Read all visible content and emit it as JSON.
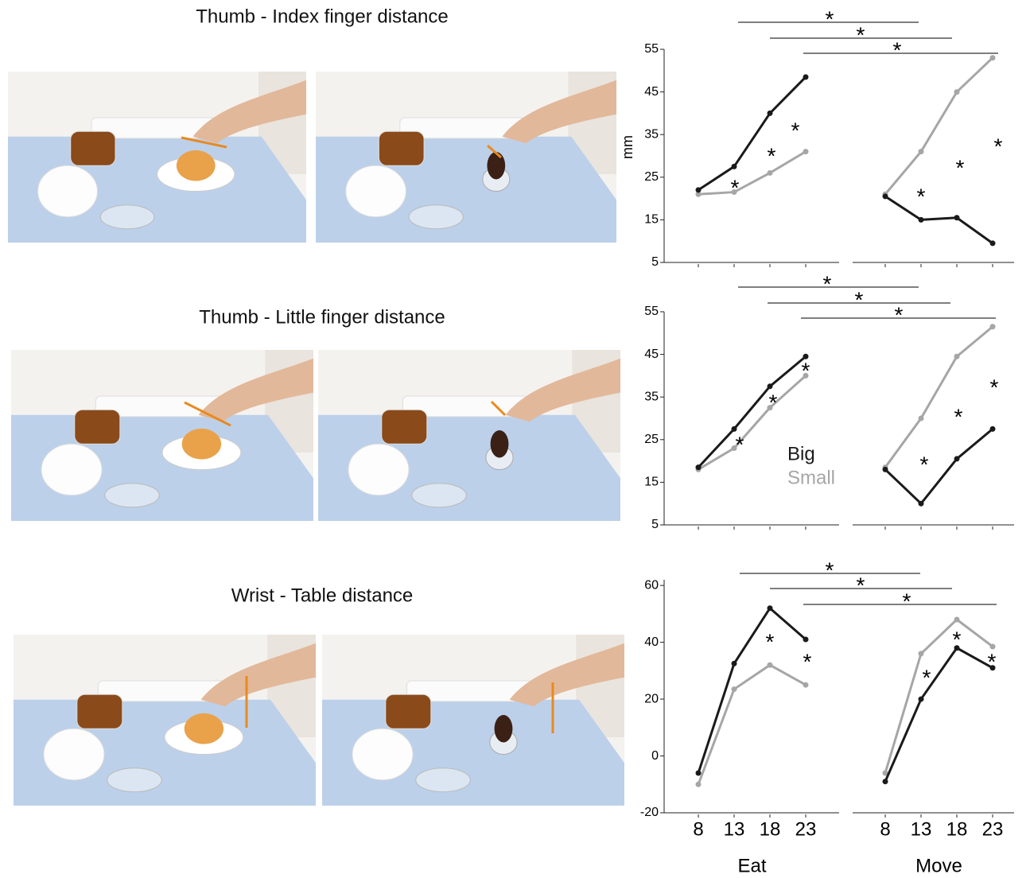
{
  "chart_data": [
    {
      "type": "line",
      "title": "Thumb - Index finger distance",
      "ylabel": "mm",
      "significance_label": "*",
      "x": [
        8,
        13,
        18,
        23
      ],
      "ylim": [
        5,
        55
      ],
      "yticks": [
        5,
        15,
        25,
        35,
        45,
        55
      ],
      "legend": false,
      "x_labels_shown": false,
      "panels": [
        {
          "name": "Eat",
          "series": [
            {
              "name": "Big",
              "color": "#1a1a1a",
              "values": [
                22,
                27.5,
                40,
                48.5
              ]
            },
            {
              "name": "Small",
              "color": "#a6a6a6",
              "values": [
                21,
                21.5,
                26,
                31
              ]
            }
          ]
        },
        {
          "name": "Move",
          "series": [
            {
              "name": "Big",
              "color": "#1a1a1a",
              "values": [
                20.5,
                15,
                15.5,
                9.5
              ]
            },
            {
              "name": "Small",
              "color": "#a6a6a6",
              "values": [
                21,
                31,
                45,
                53
              ]
            }
          ]
        }
      ]
    },
    {
      "type": "line",
      "title": "Thumb -  Little finger distance",
      "significance_label": "*",
      "x": [
        8,
        13,
        18,
        23
      ],
      "ylim": [
        5,
        55
      ],
      "yticks": [
        5,
        15,
        25,
        35,
        45,
        55
      ],
      "legend": true,
      "x_labels_shown": false,
      "panels": [
        {
          "name": "Eat",
          "series": [
            {
              "name": "Big",
              "color": "#1a1a1a",
              "values": [
                18.5,
                27.5,
                37.5,
                44.5
              ]
            },
            {
              "name": "Small",
              "color": "#a6a6a6",
              "values": [
                18,
                23,
                32.5,
                40
              ]
            }
          ]
        },
        {
          "name": "Move",
          "series": [
            {
              "name": "Big",
              "color": "#1a1a1a",
              "values": [
                18,
                10,
                20.5,
                27.5
              ]
            },
            {
              "name": "Small",
              "color": "#a6a6a6",
              "values": [
                18.5,
                30,
                44.5,
                51.5
              ]
            }
          ]
        }
      ]
    },
    {
      "type": "line",
      "title": "Wrist - Table  distance",
      "significance_label": "*",
      "x": [
        8,
        13,
        18,
        23
      ],
      "ylim": [
        -20,
        62
      ],
      "yticks": [
        -20,
        0,
        20,
        40,
        60
      ],
      "legend": false,
      "x_labels_shown": true,
      "panels": [
        {
          "name": "Eat",
          "series": [
            {
              "name": "Big",
              "color": "#1a1a1a",
              "values": [
                -6,
                32.5,
                52,
                41
              ]
            },
            {
              "name": "Small",
              "color": "#a6a6a6",
              "values": [
                -10,
                23.5,
                32,
                25
              ]
            }
          ]
        },
        {
          "name": "Move",
          "series": [
            {
              "name": "Big",
              "color": "#1a1a1a",
              "values": [
                -9,
                20,
                38,
                31
              ]
            },
            {
              "name": "Small",
              "color": "#a6a6a6",
              "values": [
                -6,
                36,
                48,
                38.5
              ]
            }
          ]
        }
      ]
    }
  ]
}
